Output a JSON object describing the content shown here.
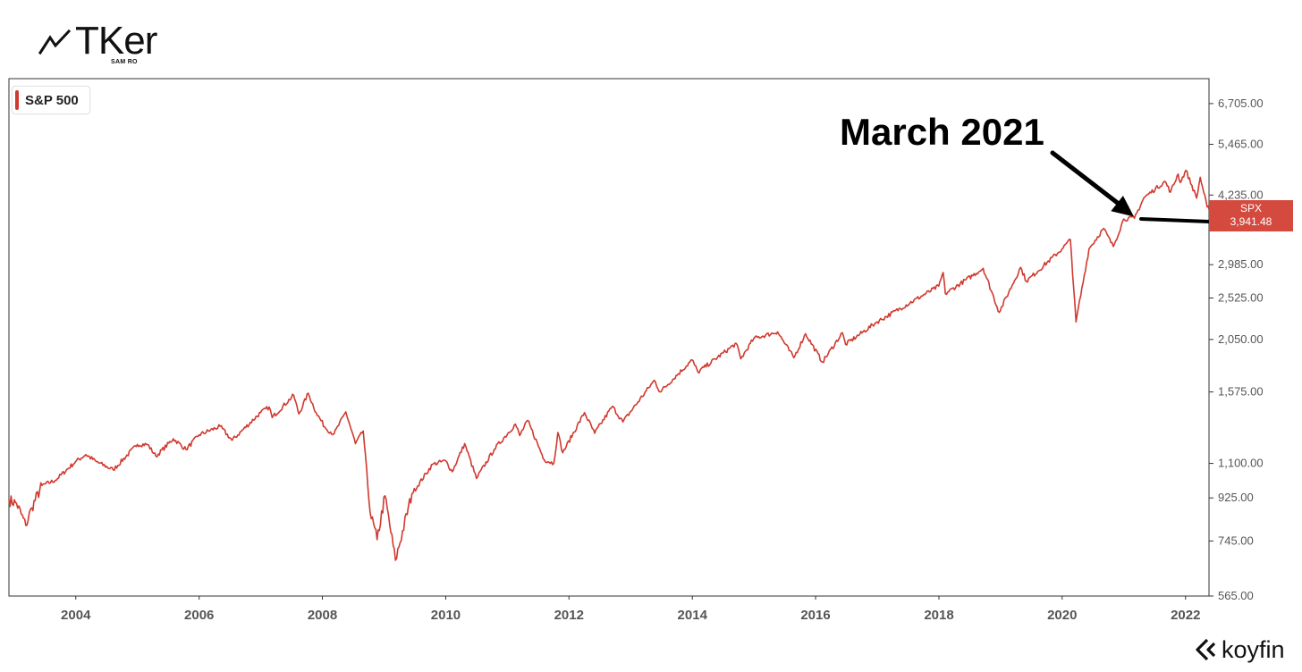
{
  "brand": {
    "name": "TKer",
    "subtitle": "SAM RO",
    "icon": "trend-line-icon"
  },
  "legend": {
    "label": "S&P 500",
    "color": "#d0392f"
  },
  "annotation": {
    "text": "March 2021"
  },
  "price_tag": {
    "symbol": "SPX",
    "value": "3,941.48",
    "color": "#d44a3f"
  },
  "watermark": {
    "text": "koyfin",
    "icon": "koyfin-logo-icon"
  },
  "colors": {
    "series": "#d0392f",
    "axis": "#333333",
    "tick_label": "#555555"
  },
  "chart_data": {
    "type": "line",
    "title": "",
    "xlabel": "",
    "ylabel": "",
    "y_scale": "log",
    "ylim": [
      565,
      7600
    ],
    "xlim": [
      "2002-12-01",
      "2022-05-20"
    ],
    "y_ticks": [
      565,
      745,
      925,
      1100,
      1575,
      2050,
      2525,
      2985,
      4235,
      5465,
      6705
    ],
    "y_tick_labels": [
      "565.00",
      "745.00",
      "925.00",
      "1,100.00",
      "1,575.00",
      "2,050.00",
      "2,525.00",
      "2,985.00",
      "4,235.00",
      "5,465.00",
      "6,705.00"
    ],
    "x_ticks": [
      "2004-01-01",
      "2006-01-01",
      "2008-01-01",
      "2010-01-01",
      "2012-01-01",
      "2014-01-01",
      "2016-01-01",
      "2018-01-01",
      "2020-01-01",
      "2022-01-01"
    ],
    "x_tick_labels": [
      "2004",
      "2006",
      "2008",
      "2010",
      "2012",
      "2014",
      "2016",
      "2018",
      "2020",
      "2022"
    ],
    "grid": false,
    "legend_position": "top-left",
    "series": [
      {
        "name": "S&P 500",
        "color": "#d0392f",
        "points": [
          [
            "2002-12-01",
            915
          ],
          [
            "2003-01-15",
            900
          ],
          [
            "2003-03-11",
            805
          ],
          [
            "2003-04-15",
            880
          ],
          [
            "2003-06-15",
            985
          ],
          [
            "2003-09-01",
            1010
          ],
          [
            "2003-12-31",
            1110
          ],
          [
            "2004-03-01",
            1150
          ],
          [
            "2004-05-01",
            1110
          ],
          [
            "2004-08-10",
            1065
          ],
          [
            "2004-12-31",
            1210
          ],
          [
            "2005-03-01",
            1210
          ],
          [
            "2005-04-20",
            1140
          ],
          [
            "2005-08-01",
            1245
          ],
          [
            "2005-10-15",
            1180
          ],
          [
            "2006-01-01",
            1270
          ],
          [
            "2006-05-05",
            1325
          ],
          [
            "2006-07-15",
            1235
          ],
          [
            "2006-12-31",
            1420
          ],
          [
            "2007-02-20",
            1460
          ],
          [
            "2007-03-10",
            1385
          ],
          [
            "2007-07-15",
            1550
          ],
          [
            "2007-08-15",
            1410
          ],
          [
            "2007-10-09",
            1565
          ],
          [
            "2007-11-25",
            1420
          ],
          [
            "2008-01-22",
            1310
          ],
          [
            "2008-03-10",
            1275
          ],
          [
            "2008-05-19",
            1425
          ],
          [
            "2008-07-15",
            1215
          ],
          [
            "2008-08-30",
            1295
          ],
          [
            "2008-10-10",
            860
          ],
          [
            "2008-11-20",
            750
          ],
          [
            "2009-01-06",
            935
          ],
          [
            "2009-03-09",
            676
          ],
          [
            "2009-06-15",
            945
          ],
          [
            "2009-10-15",
            1095
          ],
          [
            "2009-12-31",
            1115
          ],
          [
            "2010-02-08",
            1055
          ],
          [
            "2010-04-23",
            1215
          ],
          [
            "2010-07-02",
            1020
          ],
          [
            "2010-10-15",
            1180
          ],
          [
            "2011-02-18",
            1340
          ],
          [
            "2011-03-15",
            1265
          ],
          [
            "2011-05-01",
            1365
          ],
          [
            "2011-08-08",
            1120
          ],
          [
            "2011-10-03",
            1100
          ],
          [
            "2011-10-27",
            1285
          ],
          [
            "2011-11-25",
            1160
          ],
          [
            "2012-04-02",
            1420
          ],
          [
            "2012-06-01",
            1280
          ],
          [
            "2012-09-14",
            1465
          ],
          [
            "2012-11-15",
            1355
          ],
          [
            "2013-05-21",
            1670
          ],
          [
            "2013-06-24",
            1575
          ],
          [
            "2013-12-31",
            1850
          ],
          [
            "2014-02-03",
            1740
          ],
          [
            "2014-09-18",
            2010
          ],
          [
            "2014-10-15",
            1860
          ],
          [
            "2014-12-31",
            2060
          ],
          [
            "2015-05-21",
            2130
          ],
          [
            "2015-08-25",
            1870
          ],
          [
            "2015-11-03",
            2110
          ],
          [
            "2016-02-11",
            1830
          ],
          [
            "2016-06-08",
            2120
          ],
          [
            "2016-06-27",
            2000
          ],
          [
            "2016-12-31",
            2240
          ],
          [
            "2017-12-31",
            2680
          ],
          [
            "2018-01-26",
            2870
          ],
          [
            "2018-02-08",
            2580
          ],
          [
            "2018-09-20",
            2930
          ],
          [
            "2018-12-24",
            2350
          ],
          [
            "2019-04-30",
            2945
          ],
          [
            "2019-06-03",
            2745
          ],
          [
            "2019-12-31",
            3230
          ],
          [
            "2020-02-19",
            3385
          ],
          [
            "2020-03-23",
            2240
          ],
          [
            "2020-06-08",
            3230
          ],
          [
            "2020-09-02",
            3580
          ],
          [
            "2020-10-30",
            3270
          ],
          [
            "2020-12-31",
            3755
          ],
          [
            "2021-03-04",
            3770
          ],
          [
            "2021-04-30",
            4180
          ],
          [
            "2021-09-02",
            4535
          ],
          [
            "2021-10-04",
            4300
          ],
          [
            "2021-11-18",
            4705
          ],
          [
            "2021-12-01",
            4510
          ],
          [
            "2022-01-03",
            4795
          ],
          [
            "2022-03-08",
            4170
          ],
          [
            "2022-03-29",
            4630
          ],
          [
            "2022-05-09",
            3990
          ],
          [
            "2022-05-20",
            3941
          ]
        ]
      }
    ],
    "annotations": [
      {
        "text": "March 2021",
        "date": "2021-03-01",
        "value": 3800
      }
    ],
    "last_value_label": {
      "symbol": "SPX",
      "value": "3,941.48"
    }
  }
}
